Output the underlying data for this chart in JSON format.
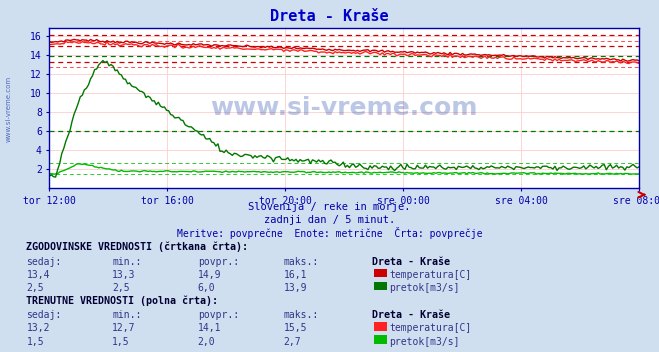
{
  "title": "Dreta - Kraše",
  "title_color": "#0000cc",
  "bg_color": "#d0dff0",
  "plot_bg_color": "#ffffff",
  "subtitle_lines": [
    "Slovenija / reke in morje.",
    "zadnji dan / 5 minut.",
    "Meritve: povprečne  Enote: metrične  Črta: povprečje"
  ],
  "watermark": "www.si-vreme.com",
  "left_label": "www.si-vreme.com",
  "x_labels": [
    "tor 12:00",
    "tor 16:00",
    "tor 20:00",
    "sre 00:00",
    "sre 04:00",
    "sre 08:00"
  ],
  "y_ticks": [
    2,
    4,
    6,
    8,
    10,
    12,
    14,
    16
  ],
  "y_min": 0,
  "y_max": 16.8,
  "n_points": 288,
  "temp_color_hist": "#cc0000",
  "temp_color_curr": "#ff2222",
  "flow_color_hist": "#007700",
  "flow_color_curr": "#00bb00",
  "axis_color": "#0000aa",
  "grid_color_v": "#ffcccc",
  "grid_color_h": "#ffcccc",
  "hist_temp_sedaj": 13.4,
  "hist_temp_min": 13.3,
  "hist_temp_povpr": 14.9,
  "hist_temp_maks": 16.1,
  "hist_flow_sedaj": 2.5,
  "hist_flow_min": 2.5,
  "hist_flow_povpr": 6.0,
  "hist_flow_maks": 13.9,
  "curr_temp_sedaj": 13.2,
  "curr_temp_min": 12.7,
  "curr_temp_povpr": 14.1,
  "curr_temp_maks": 15.5,
  "curr_flow_sedaj": 1.5,
  "curr_flow_min": 1.5,
  "curr_flow_povpr": 2.0,
  "curr_flow_maks": 2.7
}
